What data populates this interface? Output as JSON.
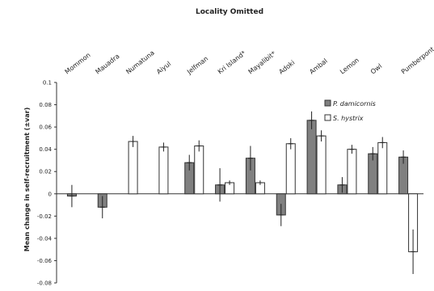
{
  "chart_data": {
    "type": "bar",
    "title": "Locality Omitted",
    "xlabel": "",
    "ylabel": "Mean change in self-recruitment (±var)",
    "ylim": [
      -0.08,
      0.1
    ],
    "yticks": [
      -0.08,
      -0.06,
      -0.04,
      -0.02,
      0,
      0.02,
      0.04,
      0.06,
      0.08,
      0.1
    ],
    "ytick_labels": [
      "-0.08",
      "-0.06",
      "-0.04",
      "-0.02",
      "0",
      "0.02",
      "0.04",
      "0.06",
      "0.08",
      "0.1"
    ],
    "categories": [
      "Mommon",
      "Mauadra",
      "Numatuna",
      "Aiyul",
      "Jelfman",
      "Kri Island*",
      "Mayalibit*",
      "Adoki",
      "Ambal",
      "Lemon",
      "Owl",
      "Pumberpont"
    ],
    "series": [
      {
        "name": "P. damicornis",
        "color": "#808080",
        "values": [
          -0.002,
          -0.012,
          null,
          null,
          0.028,
          0.008,
          0.032,
          -0.019,
          0.066,
          0.008,
          0.036,
          0.033
        ],
        "errors": [
          0.01,
          0.01,
          null,
          null,
          0.007,
          0.015,
          0.011,
          0.01,
          0.008,
          0.007,
          0.006,
          0.006
        ]
      },
      {
        "name": "S. hystrix",
        "color": "#ffffff",
        "values": [
          null,
          null,
          0.047,
          0.042,
          0.043,
          0.01,
          0.01,
          0.045,
          0.052,
          0.04,
          0.046,
          -0.052
        ],
        "errors": [
          null,
          null,
          0.005,
          0.004,
          0.005,
          0.002,
          0.002,
          0.005,
          0.005,
          0.004,
          0.005,
          0.02
        ]
      }
    ],
    "grid": false,
    "legend_position": "top-right"
  }
}
